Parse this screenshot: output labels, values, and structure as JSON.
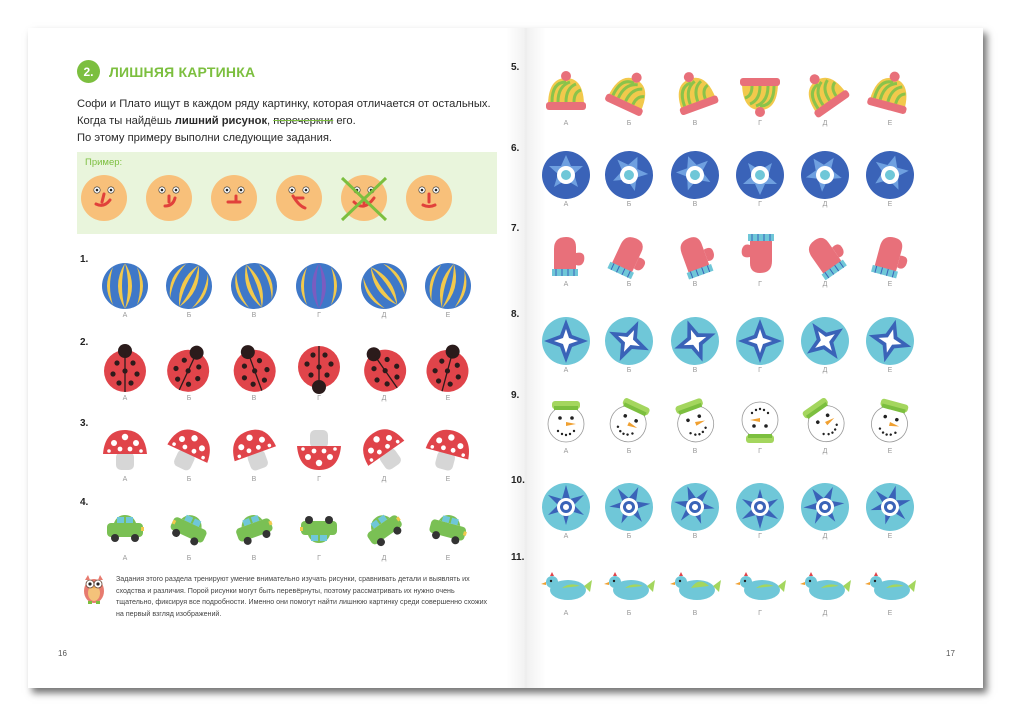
{
  "section": {
    "number": "2.",
    "title": "ЛИШНЯЯ КАРТИНКА"
  },
  "intro": {
    "line1": "Софи и Плато ищут в каждом ряду картинку, которая отличается от остальных.",
    "line2_a": "Когда ты найдёшь ",
    "line2_b": "лишний рисунок",
    "line2_c": ", ",
    "line2_d": "перечеркни",
    "line2_e": " его.",
    "line3": "По этому примеру выполни следующие задания."
  },
  "example": {
    "label": "Пример:",
    "crossed_index": 4
  },
  "letters": [
    "А",
    "Б",
    "В",
    "Г",
    "Д",
    "Е"
  ],
  "rows": [
    {
      "label": "1.",
      "item": "ball-icon"
    },
    {
      "label": "2.",
      "item": "ladybug-icon"
    },
    {
      "label": "3.",
      "item": "mushroom-icon"
    },
    {
      "label": "4.",
      "item": "car-icon"
    },
    {
      "label": "5.",
      "item": "hat-icon"
    },
    {
      "label": "6.",
      "item": "snowflake-star-icon"
    },
    {
      "label": "7.",
      "item": "mitten-icon"
    },
    {
      "label": "8.",
      "item": "snowflake-diamond-icon"
    },
    {
      "label": "9.",
      "item": "snowman-icon"
    },
    {
      "label": "10.",
      "item": "snowflake-ring-icon"
    },
    {
      "label": "11.",
      "item": "bird-icon"
    }
  ],
  "note": "Задания этого раздела тренируют умение внимательно изучать рисунки, сравнивать детали и выявлять их сходства и различия. Порой рисунки могут быть перевёрнуты, поэтому рассматривать их нужно очень тщательно, фиксируя все подробности. Именно они помогут найти лишнюю картинку среди совершенно схожих на первый взгляд изображений.",
  "page_left": "16",
  "page_right": "17",
  "colors": {
    "accent": "#7cbf3f",
    "example_bg": "#e9f5dc",
    "ladybug": "#e0444a",
    "snowflake": "#3a63b8",
    "snowflake_light": "#6fc7d8",
    "mitten": "#e8707a"
  }
}
